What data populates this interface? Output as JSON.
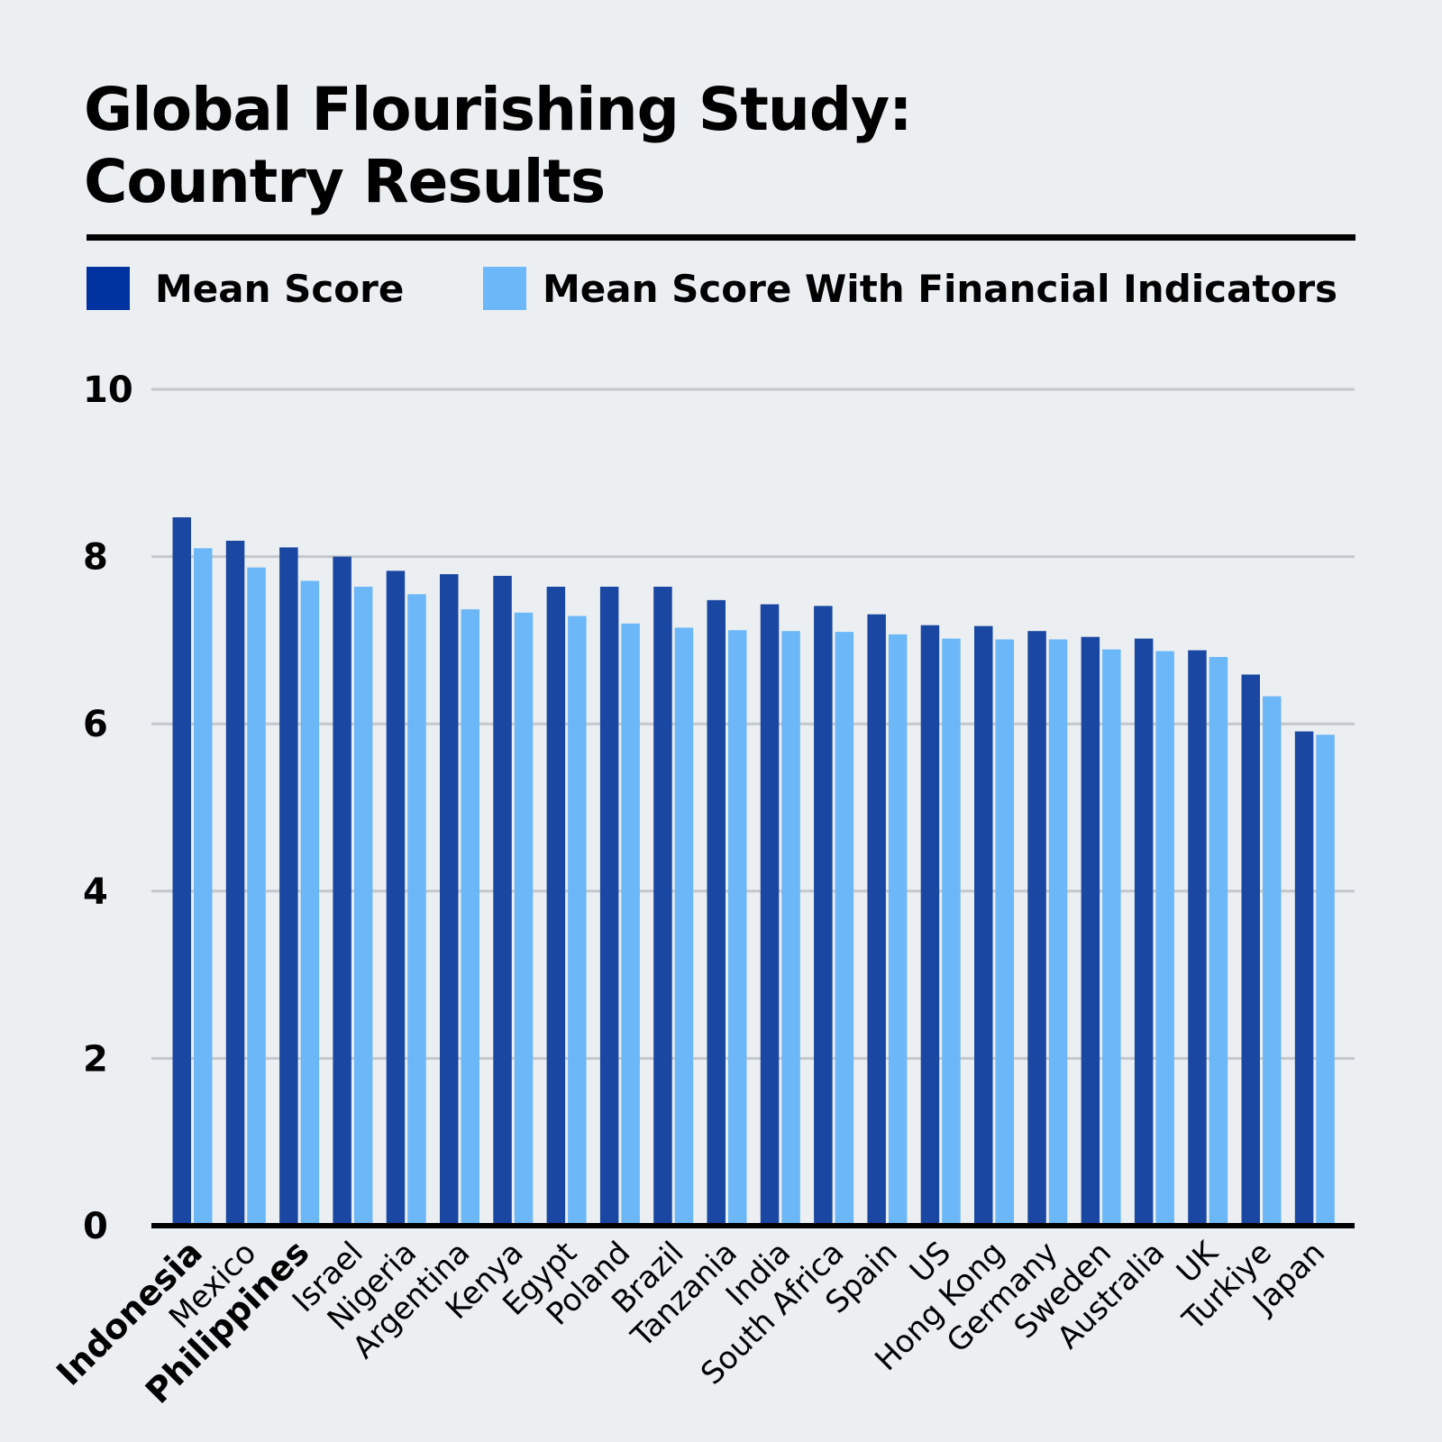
{
  "chart_data": {
    "type": "bar",
    "title": [
      "Global Flourishing Study:",
      "Country Results"
    ],
    "ylim": [
      0,
      10
    ],
    "yticks": [
      0,
      2,
      4,
      6,
      8,
      10
    ],
    "grid": true,
    "legend_position": "top",
    "categories": [
      "Indonesia",
      "Mexico",
      "Philippines",
      "Israel",
      "Nigeria",
      "Argentina",
      "Kenya",
      "Egypt",
      "Poland",
      "Brazil",
      "Tanzania",
      "India",
      "South Africa",
      "Spain",
      "US",
      "Hong Kong",
      "Germany",
      "Sweden",
      "Australia",
      "UK",
      "Turkiye",
      "Japan"
    ],
    "bold_categories": [
      "Indonesia",
      "Philippines"
    ],
    "series": [
      {
        "name": "Mean Score",
        "color": "#1A47A1",
        "values": [
          8.47,
          8.19,
          8.11,
          8.0,
          7.83,
          7.79,
          7.77,
          7.64,
          7.64,
          7.64,
          7.48,
          7.43,
          7.41,
          7.31,
          7.18,
          7.17,
          7.11,
          7.04,
          7.02,
          6.88,
          6.59,
          5.91
        ]
      },
      {
        "name": "Mean Score With Financial Indicators",
        "color": "#6BB7F8",
        "values": [
          8.1,
          7.87,
          7.71,
          7.64,
          7.55,
          7.37,
          7.33,
          7.29,
          7.2,
          7.15,
          7.12,
          7.11,
          7.1,
          7.07,
          7.02,
          7.01,
          7.01,
          6.89,
          6.87,
          6.8,
          6.33,
          5.87
        ]
      }
    ]
  },
  "legend": {
    "swatch_color_1": "#0033A0",
    "swatch_color_2": "#6BB7F8"
  }
}
